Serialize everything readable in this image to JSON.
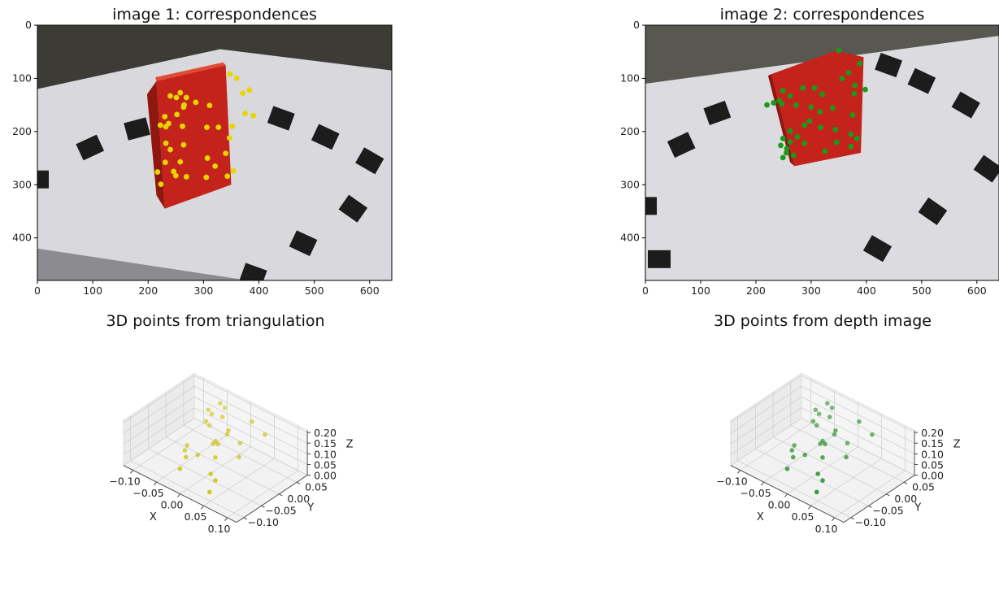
{
  "chart_data": [
    {
      "type": "scatter",
      "title": "image 1: correspondences",
      "background": "photo of a red CHEEZ-IT box on a white table with black fiducial markers",
      "xticks": [
        "0",
        "100",
        "200",
        "300",
        "400",
        "500",
        "600"
      ],
      "yticks": [
        "0",
        "100",
        "200",
        "300",
        "400"
      ],
      "xlim": [
        0,
        640
      ],
      "ylim": [
        480,
        0
      ],
      "marker_color": "#e6d500",
      "points": [
        [
          348,
          92
        ],
        [
          360,
          100
        ],
        [
          383,
          122
        ],
        [
          371,
          128
        ],
        [
          258,
          127
        ],
        [
          240,
          133
        ],
        [
          269,
          136
        ],
        [
          251,
          136
        ],
        [
          286,
          145
        ],
        [
          264,
          154
        ],
        [
          230,
          172
        ],
        [
          252,
          168
        ],
        [
          265,
          150
        ],
        [
          311,
          151
        ],
        [
          375,
          166
        ],
        [
          390,
          170
        ],
        [
          237,
          185
        ],
        [
          222,
          188
        ],
        [
          232,
          191
        ],
        [
          262,
          190
        ],
        [
          306,
          192
        ],
        [
          327,
          192
        ],
        [
          352,
          190
        ],
        [
          347,
          212
        ],
        [
          232,
          222
        ],
        [
          264,
          225
        ],
        [
          240,
          234
        ],
        [
          340,
          241
        ],
        [
          307,
          250
        ],
        [
          231,
          258
        ],
        [
          258,
          257
        ],
        [
          321,
          265
        ],
        [
          354,
          274
        ],
        [
          246,
          275
        ],
        [
          217,
          276
        ],
        [
          250,
          283
        ],
        [
          269,
          285
        ],
        [
          305,
          286
        ],
        [
          343,
          284
        ],
        [
          223,
          299
        ]
      ]
    },
    {
      "type": "scatter",
      "title": "image 2: correspondences",
      "background": "photo of the same CHEEZ-IT box from a different viewpoint",
      "xticks": [
        "0",
        "100",
        "200",
        "300",
        "400",
        "500",
        "600"
      ],
      "yticks": [
        "0",
        "100",
        "200",
        "300",
        "400"
      ],
      "xlim": [
        0,
        640
      ],
      "ylim": [
        480,
        0
      ],
      "marker_color": "#1a9a1a",
      "points": [
        [
          350,
          48
        ],
        [
          388,
          72
        ],
        [
          368,
          89
        ],
        [
          356,
          100
        ],
        [
          285,
          118
        ],
        [
          306,
          118
        ],
        [
          249,
          123
        ],
        [
          262,
          133
        ],
        [
          379,
          113
        ],
        [
          398,
          121
        ],
        [
          378,
          129
        ],
        [
          320,
          130
        ],
        [
          242,
          142
        ],
        [
          220,
          150
        ],
        [
          232,
          146
        ],
        [
          247,
          148
        ],
        [
          273,
          150
        ],
        [
          300,
          154
        ],
        [
          316,
          163
        ],
        [
          339,
          156
        ],
        [
          375,
          169
        ],
        [
          297,
          180
        ],
        [
          288,
          188
        ],
        [
          317,
          192
        ],
        [
          344,
          196
        ],
        [
          262,
          199
        ],
        [
          275,
          210
        ],
        [
          249,
          213
        ],
        [
          262,
          220
        ],
        [
          245,
          226
        ],
        [
          256,
          232
        ],
        [
          288,
          222
        ],
        [
          346,
          220
        ],
        [
          372,
          205
        ],
        [
          383,
          213
        ],
        [
          372,
          228
        ],
        [
          255,
          240
        ],
        [
          268,
          245
        ],
        [
          249,
          249
        ],
        [
          325,
          237
        ]
      ]
    },
    {
      "type": "scatter3d",
      "title": "3D points from triangulation",
      "xlabel": "X",
      "ylabel": "Y",
      "zlabel": "Z",
      "xlim": [
        -0.12,
        0.12
      ],
      "ylim": [
        -0.12,
        0.08
      ],
      "zlim": [
        0,
        0.21
      ],
      "xticks": [
        "−0.10",
        "−0.05",
        "0.00",
        "0.05",
        "0.10"
      ],
      "yticks": [
        "−0.10",
        "−0.05",
        "0.00",
        "0.05"
      ],
      "zticks": [
        "0.00",
        "0.05",
        "0.10",
        "0.15",
        "0.20"
      ],
      "marker_color": "#c8c200",
      "points": [
        [
          -0.03,
          -0.08,
          0.04
        ],
        [
          0.01,
          0.07,
          0.14
        ],
        [
          0.03,
          0.08,
          0.09
        ],
        [
          0.0,
          0.05,
          0.05
        ],
        [
          -0.03,
          0.02,
          0.06
        ],
        [
          0.02,
          0.02,
          0.04
        ],
        [
          0.03,
          -0.06,
          0.03
        ],
        [
          0.04,
          -0.09,
          0.02
        ],
        [
          -0.06,
          -0.02,
          0.05
        ],
        [
          -0.05,
          0.02,
          0.13
        ],
        [
          -0.06,
          0.04,
          0.15
        ],
        [
          -0.05,
          0.06,
          0.17
        ],
        [
          -0.04,
          0.06,
          0.16
        ],
        [
          -0.03,
          0.04,
          0.15
        ],
        [
          -0.01,
          0.03,
          0.12
        ],
        [
          -0.05,
          0.03,
          0.1
        ],
        [
          -0.02,
          0.04,
          0.08
        ],
        [
          -0.02,
          0.0,
          0.08
        ],
        [
          0.0,
          -0.02,
          0.06
        ],
        [
          -0.03,
          -0.03,
          0.05
        ],
        [
          -0.05,
          -0.04,
          0.06
        ],
        [
          -0.04,
          -0.05,
          0.05
        ],
        [
          -0.06,
          0.05,
          0.12
        ],
        [
          -0.01,
          0.0,
          0.09
        ],
        [
          0.02,
          -0.06,
          0.05
        ]
      ]
    },
    {
      "type": "scatter3d",
      "title": "3D points from depth image",
      "xlabel": "X",
      "ylabel": "Y",
      "zlabel": "Z",
      "xlim": [
        -0.12,
        0.12
      ],
      "ylim": [
        -0.12,
        0.08
      ],
      "zlim": [
        0,
        0.21
      ],
      "xticks": [
        "−0.10",
        "−0.05",
        "0.00",
        "0.05",
        "0.10"
      ],
      "yticks": [
        "−0.10",
        "−0.05",
        "0.00",
        "0.05"
      ],
      "zticks": [
        "0.00",
        "0.05",
        "0.10",
        "0.15",
        "0.20"
      ],
      "marker_color": "#1f8a1f",
      "points": [
        [
          -0.03,
          -0.08,
          0.04
        ],
        [
          0.01,
          0.07,
          0.14
        ],
        [
          0.03,
          0.08,
          0.09
        ],
        [
          0.0,
          0.05,
          0.05
        ],
        [
          -0.03,
          0.02,
          0.06
        ],
        [
          0.02,
          0.02,
          0.04
        ],
        [
          0.03,
          -0.06,
          0.03
        ],
        [
          0.04,
          -0.09,
          0.02
        ],
        [
          -0.06,
          -0.02,
          0.05
        ],
        [
          -0.05,
          0.02,
          0.13
        ],
        [
          -0.06,
          0.04,
          0.15
        ],
        [
          -0.05,
          0.06,
          0.17
        ],
        [
          -0.04,
          0.06,
          0.16
        ],
        [
          -0.03,
          0.04,
          0.15
        ],
        [
          -0.01,
          0.03,
          0.12
        ],
        [
          -0.05,
          0.03,
          0.1
        ],
        [
          -0.02,
          0.04,
          0.08
        ],
        [
          -0.02,
          0.0,
          0.08
        ],
        [
          0.0,
          -0.02,
          0.06
        ],
        [
          -0.03,
          -0.03,
          0.05
        ],
        [
          -0.05,
          -0.04,
          0.06
        ],
        [
          -0.04,
          -0.05,
          0.05
        ],
        [
          -0.06,
          0.05,
          0.12
        ],
        [
          -0.01,
          0.0,
          0.09
        ],
        [
          0.02,
          -0.06,
          0.05
        ]
      ]
    }
  ]
}
